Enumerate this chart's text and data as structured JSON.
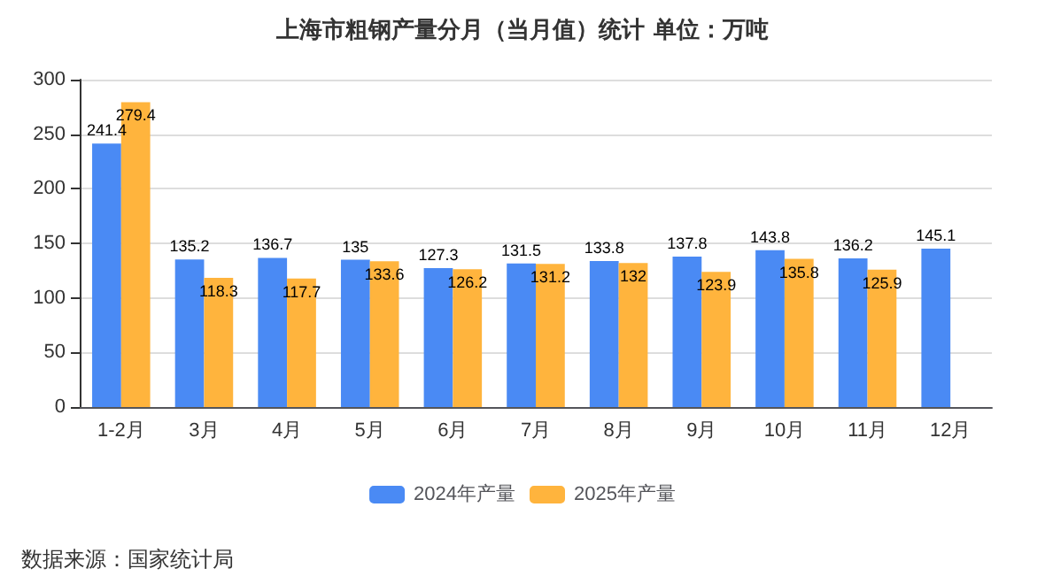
{
  "chart_data": {
    "type": "bar",
    "title": "上海市粗钢产量分月（当月值）统计 单位：万吨",
    "categories": [
      "1-2月",
      "3月",
      "4月",
      "5月",
      "6月",
      "7月",
      "8月",
      "9月",
      "10月",
      "11月",
      "12月"
    ],
    "series": [
      {
        "name": "2024年产量",
        "color": "#4a8af4",
        "values": [
          241.4,
          135.2,
          136.7,
          135,
          127.3,
          131.5,
          133.8,
          137.8,
          143.8,
          136.2,
          145.1
        ]
      },
      {
        "name": "2025年产量",
        "color": "#ffb43d",
        "values": [
          279.4,
          118.3,
          117.7,
          133.6,
          126.2,
          131.2,
          132,
          123.9,
          135.8,
          125.9,
          null
        ]
      }
    ],
    "ylim": [
      0,
      300
    ],
    "yticks": [
      0,
      50,
      100,
      150,
      200,
      250,
      300
    ],
    "grid": "y",
    "legend": "bottom",
    "data_labels": true,
    "annotations": [
      "数据来源：国家统计局"
    ]
  }
}
